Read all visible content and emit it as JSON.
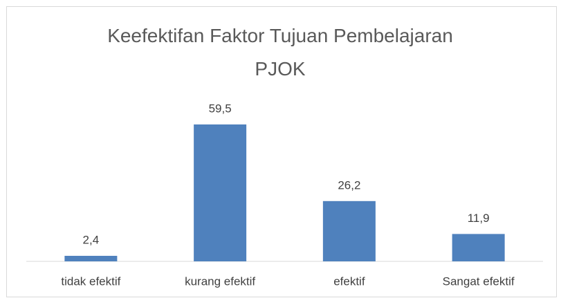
{
  "chart_data": {
    "type": "bar",
    "title": "Keefektifan Faktor Tujuan Pembelajaran PJOK",
    "categories": [
      "tidak efektif",
      "kurang efektif",
      "efektif",
      "Sangat efektif"
    ],
    "values": [
      2.4,
      59.5,
      26.2,
      11.9
    ],
    "value_labels": [
      "2,4",
      "59,5",
      "26,2",
      "11,9"
    ],
    "color": "#4f81bd"
  }
}
